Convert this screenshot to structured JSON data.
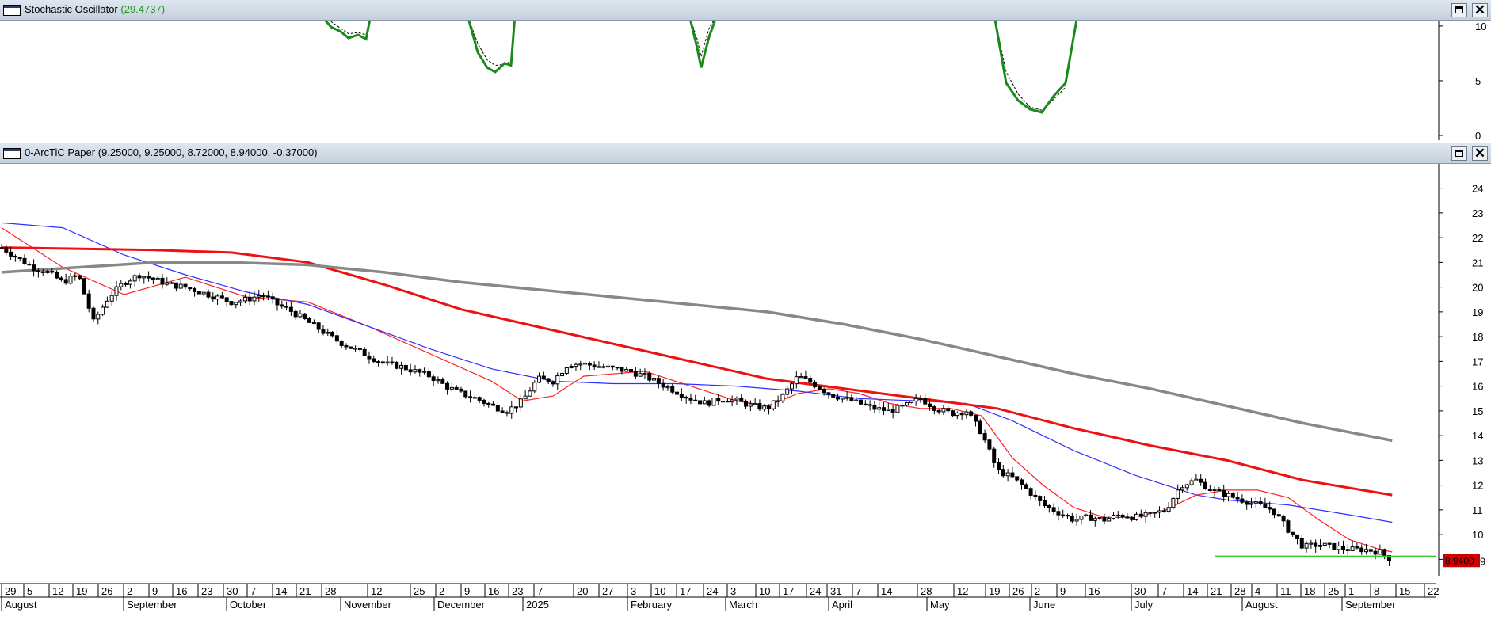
{
  "stoch_window": {
    "title": "Stochastic Oscillator",
    "value": "(29.4737)",
    "close_icon": "close-icon",
    "maximize_icon": "maximize-icon"
  },
  "price_window": {
    "title": "0-ArcTiC Paper (9.25000, 9.25000, 8.72000, 8.94000, -0.37000)",
    "close_icon": "close-icon",
    "maximize_icon": "maximize-icon"
  },
  "colors": {
    "candles": "#000000",
    "ma_short": "#ff2020",
    "ma_mid": "#2f2fff",
    "ma_long": "#ee1111",
    "ma_longest": "#888888",
    "stoch_k": "#1a8a1a",
    "stoch_d": "#000000",
    "support_line": "#33cc33",
    "last_price_bg": "#cc0000"
  },
  "chart_data": [
    {
      "type": "line",
      "name": "stochastic",
      "ylim": [
        0,
        10.5
      ],
      "y_ticks": [
        0,
        5,
        10
      ],
      "series": [
        {
          "name": "%K",
          "x": [
            0,
            1.5,
            2.5,
            3.5,
            4.5,
            5.5,
            6.5,
            7.5,
            8.5,
            9.5,
            10.5,
            11.5,
            12.5,
            13.5,
            14.5,
            15.5,
            16.5,
            17.5,
            18.5,
            19.5,
            20.5,
            21.5,
            22.5,
            23.5,
            24.5,
            25.5
          ],
          "y": [
            11,
            10.5,
            9.6,
            9.1,
            8.9,
            9.5,
            11,
            11,
            10,
            7.5,
            6.1,
            6.8,
            6.2,
            7.3,
            11,
            11,
            6.2,
            9.6,
            11,
            11,
            4.7,
            3.4,
            2.4,
            2.1,
            4.5,
            11
          ]
        },
        {
          "name": "%D",
          "x": [
            0,
            1.5,
            2.5,
            3.5,
            4.5,
            5.5,
            6.5,
            7.5,
            8.5,
            9.5,
            10.5,
            11.5,
            12.5,
            13.5,
            14.5,
            15.5,
            16.5,
            17.5,
            18.5,
            19.5,
            20.5,
            21.5,
            22.5,
            23.5,
            24.5,
            25.5
          ],
          "y": [
            11,
            11,
            10.2,
            9.4,
            9.2,
            9.7,
            11,
            11,
            10.5,
            8.2,
            6.8,
            6.6,
            6.6,
            7.8,
            11,
            11,
            7.5,
            10.1,
            11,
            11,
            5.5,
            3.7,
            2.7,
            2.4,
            4.1,
            11
          ]
        }
      ]
    },
    {
      "type": "candlestick",
      "name": "0-ArcTiC Paper",
      "ylim": [
        8.5,
        24.5
      ],
      "y_ticks": [
        9,
        10,
        11,
        12,
        13,
        14,
        15,
        16,
        17,
        18,
        19,
        20,
        21,
        22,
        23,
        24
      ],
      "last_price": "8.9400",
      "last_price_tick": "9",
      "support_level": 9.12,
      "x_day_labels": [
        "29",
        "5",
        "12",
        "19",
        "26",
        "2",
        "9",
        "16",
        "23",
        "30",
        "7",
        "14",
        "21",
        "28",
        "12",
        "25",
        "2",
        "9",
        "16",
        "23",
        "7",
        "20",
        "27",
        "3",
        "10",
        "17",
        "24",
        "3",
        "10",
        "17",
        "24",
        "31",
        "7",
        "14",
        "28",
        "12",
        "19",
        "26",
        "2",
        "9",
        "16",
        "30",
        "7",
        "14",
        "21",
        "28",
        "4",
        "11",
        "18",
        "25",
        "1",
        "8",
        "15",
        "22"
      ],
      "x_month_labels": [
        "August",
        "September",
        "October",
        "November",
        "December",
        "2025",
        "February",
        "March",
        "April",
        "May",
        "June",
        "July",
        "August",
        "September"
      ],
      "close_points": [
        [
          0,
          21.6
        ],
        [
          10,
          21.2
        ],
        [
          20,
          20.8
        ],
        [
          30,
          20.6
        ],
        [
          40,
          20.2
        ],
        [
          50,
          20.5
        ],
        [
          60,
          18.6
        ],
        [
          70,
          19.6
        ],
        [
          80,
          20.2
        ],
        [
          90,
          20.5
        ],
        [
          100,
          20.3
        ],
        [
          110,
          20.1
        ],
        [
          120,
          20.0
        ],
        [
          130,
          19.8
        ],
        [
          140,
          19.6
        ],
        [
          150,
          19.4
        ],
        [
          160,
          19.5
        ],
        [
          170,
          19.7
        ],
        [
          180,
          19.3
        ],
        [
          190,
          19.0
        ],
        [
          200,
          18.6
        ],
        [
          210,
          18.2
        ],
        [
          220,
          17.8
        ],
        [
          230,
          17.5
        ],
        [
          240,
          17.2
        ],
        [
          250,
          16.9
        ],
        [
          260,
          16.8
        ],
        [
          270,
          16.6
        ],
        [
          280,
          16.4
        ],
        [
          290,
          16.0
        ],
        [
          300,
          15.7
        ],
        [
          310,
          15.5
        ],
        [
          320,
          15.2
        ],
        [
          330,
          15.0
        ],
        [
          340,
          15.4
        ],
        [
          350,
          16.3
        ],
        [
          360,
          16.2
        ],
        [
          370,
          16.9
        ],
        [
          380,
          16.9
        ],
        [
          390,
          16.8
        ],
        [
          400,
          16.7
        ],
        [
          410,
          16.6
        ],
        [
          420,
          16.4
        ],
        [
          430,
          16.1
        ],
        [
          440,
          15.8
        ],
        [
          450,
          15.5
        ],
        [
          460,
          15.3
        ],
        [
          470,
          15.5
        ],
        [
          480,
          15.4
        ],
        [
          490,
          15.2
        ],
        [
          500,
          15.1
        ],
        [
          510,
          15.6
        ],
        [
          520,
          16.4
        ],
        [
          530,
          16.1
        ],
        [
          540,
          15.7
        ],
        [
          550,
          15.5
        ],
        [
          560,
          15.3
        ],
        [
          570,
          15.1
        ],
        [
          580,
          15.0
        ],
        [
          590,
          15.2
        ],
        [
          600,
          15.5
        ],
        [
          610,
          15.1
        ],
        [
          620,
          14.9
        ],
        [
          630,
          15.0
        ],
        [
          640,
          14.1
        ],
        [
          650,
          12.6
        ],
        [
          660,
          12.3
        ],
        [
          670,
          11.8
        ],
        [
          680,
          11.2
        ],
        [
          690,
          10.9
        ],
        [
          700,
          10.6
        ],
        [
          710,
          10.7
        ],
        [
          720,
          10.6
        ],
        [
          730,
          10.8
        ],
        [
          740,
          10.7
        ],
        [
          750,
          10.8
        ],
        [
          760,
          11.0
        ],
        [
          770,
          12.0
        ],
        [
          780,
          12.2
        ],
        [
          790,
          11.8
        ],
        [
          800,
          11.6
        ],
        [
          810,
          11.4
        ],
        [
          820,
          11.2
        ],
        [
          830,
          11.0
        ],
        [
          840,
          10.2
        ],
        [
          850,
          9.5
        ],
        [
          860,
          9.6
        ],
        [
          870,
          9.5
        ],
        [
          880,
          9.4
        ],
        [
          890,
          9.4
        ],
        [
          900,
          9.3
        ],
        [
          908,
          8.94
        ]
      ],
      "series": [
        {
          "name": "MA short",
          "x": [
            0,
            40,
            80,
            120,
            160,
            200,
            240,
            280,
            320,
            340,
            360,
            380,
            420,
            460,
            480,
            500,
            520,
            540,
            560,
            580,
            600,
            620,
            640,
            660,
            680,
            700,
            720,
            740,
            760,
            780,
            800,
            820,
            840,
            860,
            880,
            900,
            908
          ],
          "y": [
            22.4,
            20.8,
            19.7,
            20.4,
            19.6,
            19.4,
            18.4,
            17.3,
            16.2,
            15.4,
            15.6,
            16.4,
            16.6,
            15.8,
            15.4,
            15.2,
            15.7,
            15.9,
            15.7,
            15.3,
            15.1,
            15.1,
            14.8,
            13.1,
            12.0,
            11.1,
            10.7,
            10.7,
            11.0,
            11.6,
            11.8,
            11.8,
            11.5,
            10.6,
            9.8,
            9.4,
            9.3
          ]
        },
        {
          "name": "MA mid",
          "x": [
            0,
            40,
            80,
            120,
            160,
            200,
            240,
            280,
            320,
            360,
            400,
            440,
            480,
            520,
            560,
            600,
            630,
            660,
            700,
            740,
            780,
            800,
            820,
            840,
            860,
            880,
            908
          ],
          "y": [
            22.6,
            22.4,
            21.3,
            20.5,
            19.8,
            19.3,
            18.4,
            17.5,
            16.7,
            16.2,
            16.1,
            16.1,
            16.0,
            15.8,
            15.5,
            15.4,
            15.3,
            14.6,
            13.4,
            12.4,
            11.6,
            11.4,
            11.3,
            11.2,
            11.0,
            10.8,
            10.5
          ]
        },
        {
          "name": "MA long",
          "x": [
            0,
            100,
            150,
            200,
            250,
            300,
            350,
            400,
            450,
            500,
            550,
            600,
            650,
            700,
            750,
            800,
            850,
            908
          ],
          "y": [
            21.6,
            21.5,
            21.4,
            21.0,
            20.1,
            19.1,
            18.4,
            17.7,
            17.0,
            16.3,
            15.9,
            15.5,
            15.1,
            14.3,
            13.6,
            13.0,
            12.2,
            11.6
          ]
        },
        {
          "name": "MA longest",
          "x": [
            0,
            100,
            150,
            200,
            250,
            300,
            350,
            400,
            450,
            500,
            550,
            600,
            650,
            700,
            750,
            800,
            850,
            908
          ],
          "y": [
            20.6,
            21.0,
            21.0,
            20.9,
            20.6,
            20.2,
            19.9,
            19.6,
            19.3,
            19.0,
            18.5,
            17.9,
            17.2,
            16.5,
            15.9,
            15.2,
            14.5,
            13.8
          ]
        }
      ]
    }
  ]
}
